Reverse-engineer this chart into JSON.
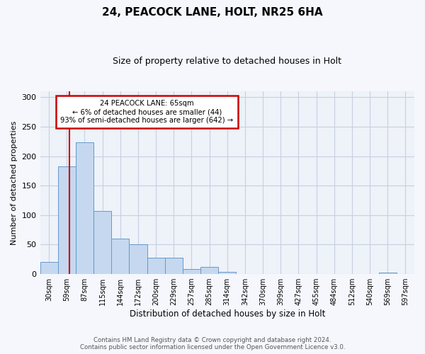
{
  "title1": "24, PEACOCK LANE, HOLT, NR25 6HA",
  "title2": "Size of property relative to detached houses in Holt",
  "xlabel": "Distribution of detached houses by size in Holt",
  "ylabel": "Number of detached properties",
  "bin_labels": [
    "30sqm",
    "59sqm",
    "87sqm",
    "115sqm",
    "144sqm",
    "172sqm",
    "200sqm",
    "229sqm",
    "257sqm",
    "285sqm",
    "314sqm",
    "342sqm",
    "370sqm",
    "399sqm",
    "427sqm",
    "455sqm",
    "484sqm",
    "512sqm",
    "540sqm",
    "569sqm",
    "597sqm"
  ],
  "bar_values": [
    20,
    183,
    224,
    107,
    60,
    50,
    28,
    28,
    9,
    12,
    4,
    0,
    0,
    0,
    0,
    0,
    0,
    0,
    0,
    3,
    0
  ],
  "property_size_bin": 1.15,
  "annotation_title": "24 PEACOCK LANE: 65sqm",
  "annotation_line1": "← 6% of detached houses are smaller (44)",
  "annotation_line2": "93% of semi-detached houses are larger (642) →",
  "bar_color": "#c5d8ef",
  "bar_edge_color": "#6699cc",
  "vline_color": "#cc0000",
  "annotation_box_color": "#cc0000",
  "ylim": [
    0,
    310
  ],
  "yticks": [
    0,
    50,
    100,
    150,
    200,
    250,
    300
  ],
  "footer1": "Contains HM Land Registry data © Crown copyright and database right 2024.",
  "footer2": "Contains public sector information licensed under the Open Government Licence v3.0.",
  "bg_color": "#eef2f9",
  "grid_color": "#c8cfe0",
  "fig_bg_color": "#f5f7fc"
}
